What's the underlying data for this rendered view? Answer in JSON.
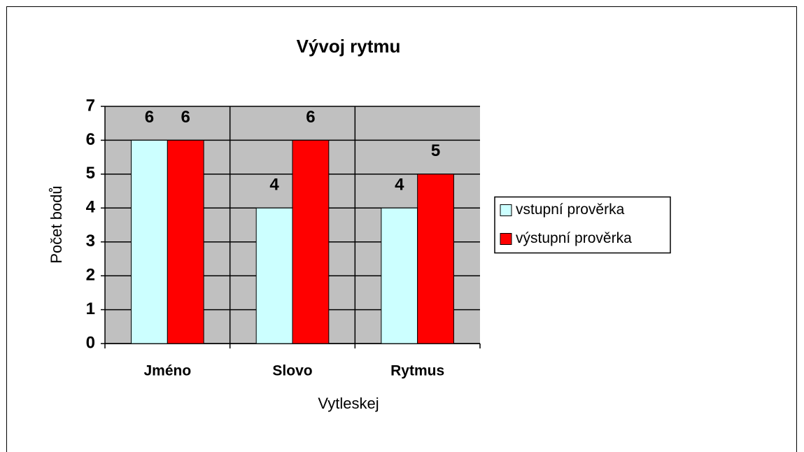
{
  "chart_data": {
    "type": "bar",
    "title": "Vývoj rytmu",
    "x_label": "Vytleskej",
    "y_label": "Počet bodů",
    "categories": [
      "Jméno",
      "Slovo",
      "Rytmus"
    ],
    "series": [
      {
        "name": "vstupní prověrka",
        "color": "#ccffff",
        "values": [
          6,
          4,
          4
        ]
      },
      {
        "name": "výstupní prověrka",
        "color": "#ff0000",
        "values": [
          6,
          6,
          5
        ]
      }
    ],
    "ylim": [
      0,
      7
    ],
    "yticks": [
      0,
      1,
      2,
      3,
      4,
      5,
      6,
      7
    ],
    "grid": true,
    "legend": "right",
    "plot_background": "#c0c0c0"
  }
}
